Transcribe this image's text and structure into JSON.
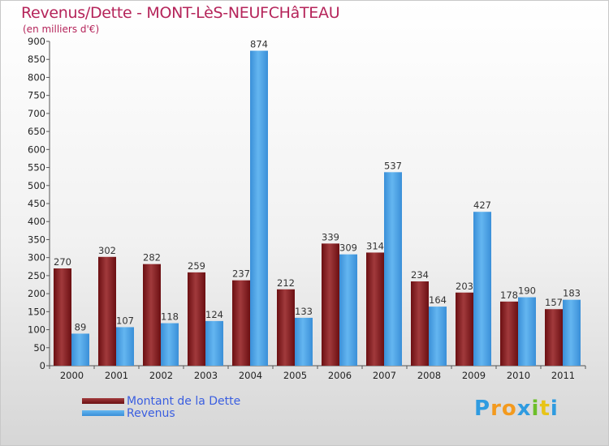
{
  "header": {
    "title": "Revenus/Dette - MONT-LèS-NEUFCHâTEAU",
    "subtitle": "(en milliers d'€)"
  },
  "legend": {
    "debt_label": "Montant de la Dette",
    "revenue_label": "Revenus"
  },
  "brand": {
    "logo": "Proxiti"
  },
  "colors": {
    "debt": "#6b0f12",
    "debt_light": "#a13a3c",
    "revenue": "#3a8fd8",
    "revenue_light": "#64b6f0",
    "title": "#b5245a",
    "legend_text": "#3a5ee0"
  },
  "chart_data": {
    "type": "bar",
    "title": "Revenus/Dette - MONT-LèS-NEUFCHâTEAU",
    "ylabel": "(en milliers d'€)",
    "xlabel": "",
    "categories": [
      "2000",
      "2001",
      "2002",
      "2003",
      "2004",
      "2005",
      "2006",
      "2007",
      "2008",
      "2009",
      "2010",
      "2011"
    ],
    "series": [
      {
        "name": "Montant de la Dette",
        "values": [
          270,
          302,
          282,
          259,
          237,
          212,
          339,
          314,
          234,
          203,
          178,
          157
        ]
      },
      {
        "name": "Revenus",
        "values": [
          89,
          107,
          118,
          124,
          874,
          133,
          309,
          537,
          164,
          427,
          190,
          183
        ]
      }
    ],
    "ylim": [
      0,
      900
    ],
    "yticks": [
      0,
      50,
      100,
      150,
      200,
      250,
      300,
      350,
      400,
      450,
      500,
      550,
      600,
      650,
      700,
      750,
      800,
      850,
      900
    ],
    "grid": false,
    "legend_position": "bottom-left"
  }
}
